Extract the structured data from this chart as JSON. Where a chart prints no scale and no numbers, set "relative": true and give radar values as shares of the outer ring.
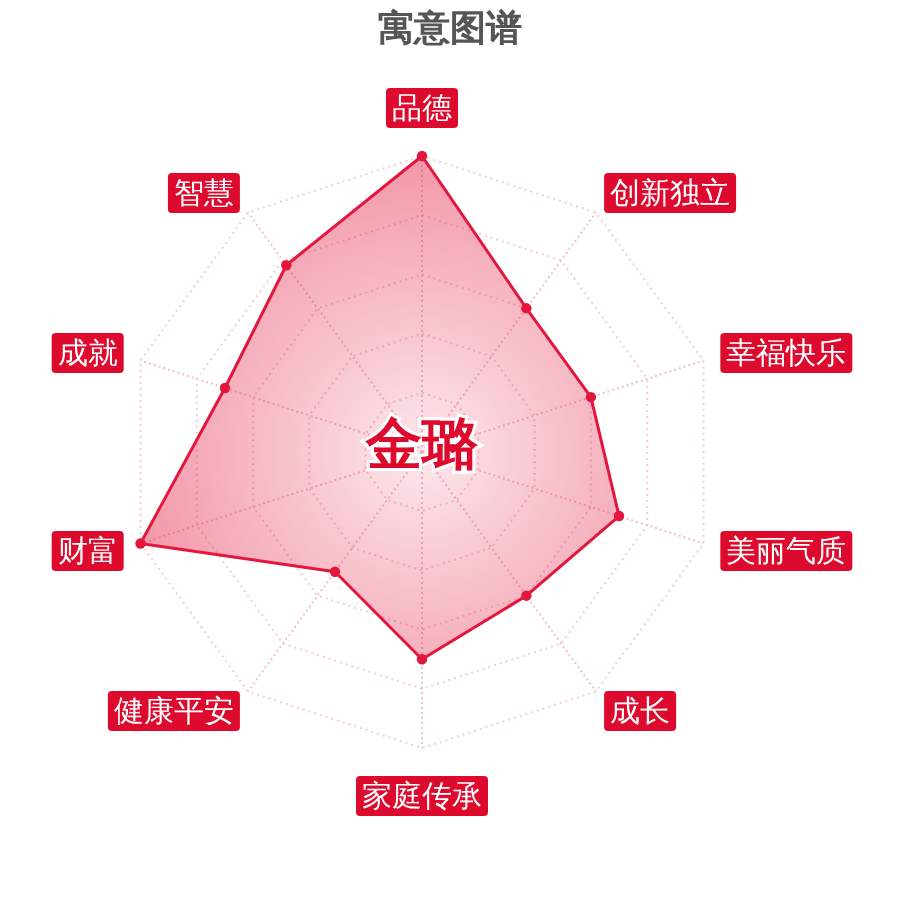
{
  "chart_data": {
    "type": "radar",
    "title": "寓意图谱",
    "categories": [
      "品德",
      "创新独立",
      "幸福快乐",
      "美丽气质",
      "成长",
      "家庭传承",
      "健康平安",
      "财富",
      "成就",
      "智慧"
    ],
    "relative": true,
    "grid": true,
    "marker": "circle",
    "series": [
      {
        "color": "#e3173e",
        "values": [
          1.0,
          0.6,
          0.6,
          0.7,
          0.6,
          0.7,
          0.5,
          1.0,
          0.7,
          0.78
        ]
      }
    ],
    "annotations": [
      "金璐"
    ]
  }
}
